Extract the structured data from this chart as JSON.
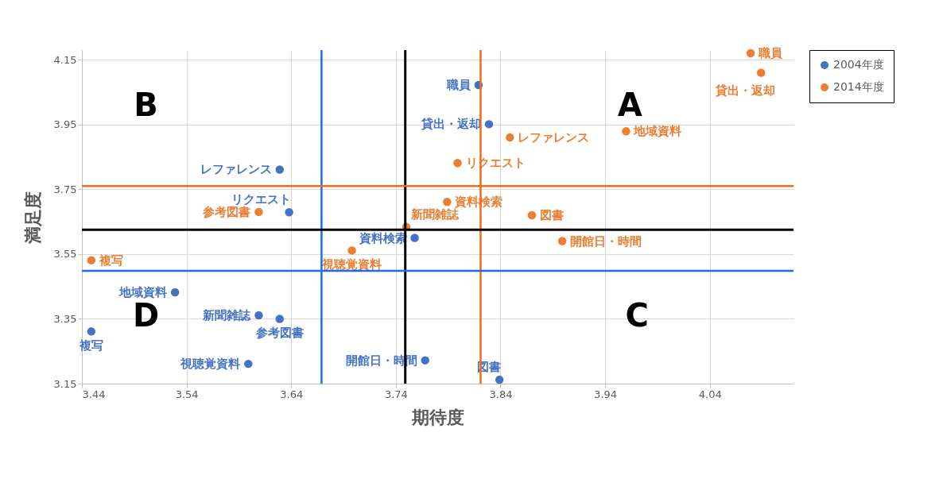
{
  "chart_data": {
    "type": "scatter",
    "xlabel": "期待度",
    "ylabel": "満足度",
    "xlim": [
      3.44,
      4.12
    ],
    "ylim": [
      3.15,
      4.18
    ],
    "xticks": [
      3.44,
      3.54,
      3.64,
      3.74,
      3.84,
      3.94,
      4.04
    ],
    "yticks": [
      3.15,
      3.35,
      3.55,
      3.75,
      3.95,
      4.15
    ],
    "grid": true,
    "legend": "right",
    "marker": "circle",
    "series": [
      {
        "name": "2004年度",
        "color": "#4472c4",
        "x": [
          3.819,
          3.829,
          3.629,
          3.638,
          3.758,
          3.529,
          3.609,
          3.629,
          3.449,
          3.599,
          3.768,
          3.839
        ],
        "values": [
          4.072,
          3.951,
          3.811,
          3.679,
          3.6,
          3.432,
          3.361,
          3.35,
          3.311,
          3.211,
          3.222,
          3.162
        ],
        "value_labels": [
          "職員",
          "貸出・返却",
          "レファレンス",
          "リクエスト",
          "資料検索",
          "地域資料",
          "新聞雑誌",
          "参考図書",
          "複写",
          "視聴覚資料",
          "開館日・時間",
          "図書"
        ]
      },
      {
        "name": "2014年度",
        "color": "#ed7d31",
        "x": [
          4.079,
          4.089,
          3.849,
          3.96,
          3.799,
          3.789,
          3.87,
          3.75,
          3.609,
          3.899,
          3.698,
          3.449
        ],
        "values": [
          4.17,
          4.11,
          3.91,
          3.929,
          3.831,
          3.711,
          3.67,
          3.634,
          3.68,
          3.59,
          3.561,
          3.531
        ],
        "value_labels": [
          "職員",
          "貸出・返却",
          "レファレンス",
          "地域資料",
          "リクエスト",
          "資料検索",
          "図書",
          "新聞雑誌",
          "参考図書",
          "開館日・時間",
          "視聴覚資料",
          "複写"
        ]
      }
    ],
    "ref_lines": [
      {
        "axis": "x",
        "value": 3.669,
        "color": "#1a6cf0"
      },
      {
        "axis": "x",
        "value": 3.749,
        "color": "#000000"
      },
      {
        "axis": "x",
        "value": 3.821,
        "color": "#f26b1d"
      },
      {
        "axis": "y",
        "value": 3.76,
        "color": "#f26b1d"
      },
      {
        "axis": "y",
        "value": 3.625,
        "color": "#000000"
      },
      {
        "axis": "y",
        "value": 3.498,
        "color": "#1a6cf0"
      }
    ],
    "annotations": [
      "A",
      "B",
      "C",
      "D"
    ]
  }
}
